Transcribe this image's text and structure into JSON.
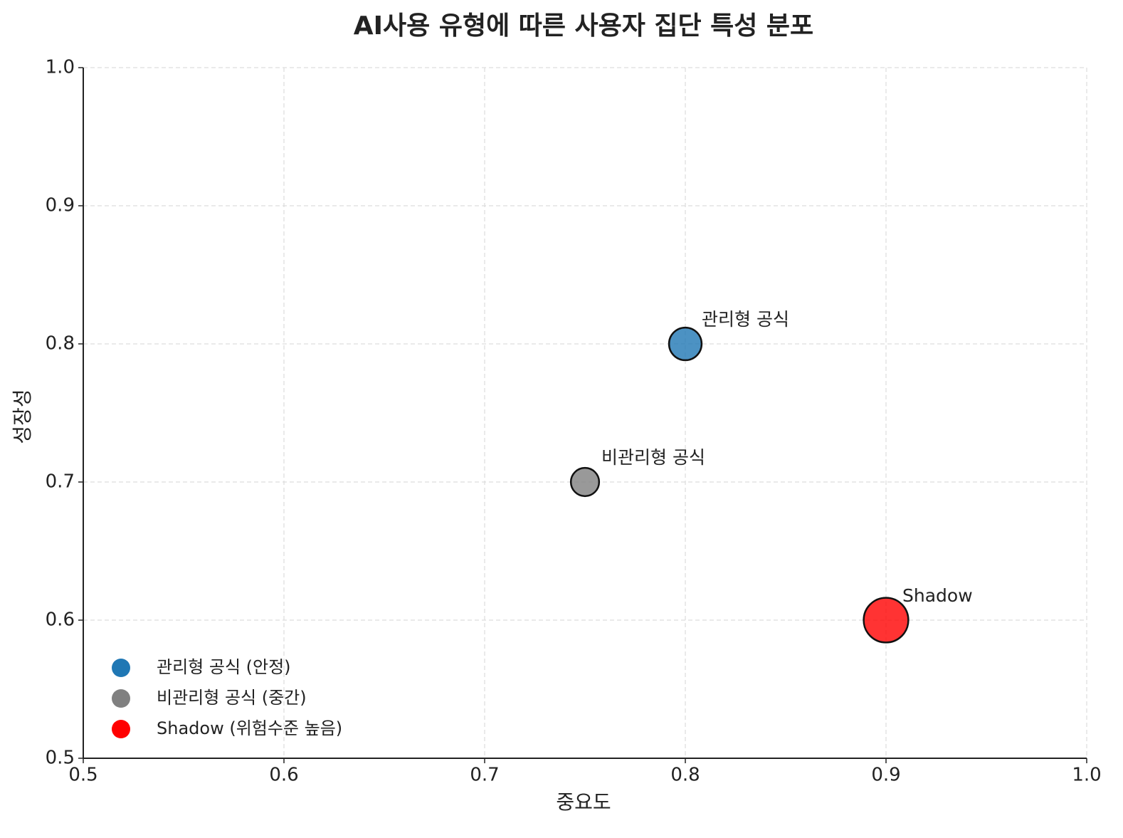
{
  "chart_data": {
    "type": "scatter",
    "title": "AI사용 유형에 따른 사용자 집단 특성 분포",
    "x_label": "중요도",
    "y_label": "성장성",
    "xlim": [
      0.5,
      1.0
    ],
    "ylim": [
      0.5,
      1.0
    ],
    "xticks": [
      0.5,
      0.6,
      0.7,
      0.8,
      0.9,
      {
        "value": 1.0,
        "label": "1.0"
      }
    ],
    "yticks": [
      0.5,
      0.6,
      0.7,
      0.8,
      0.9,
      {
        "value": 1.0,
        "label": "1.0"
      }
    ],
    "grid": true,
    "legend": "lower left",
    "series": [
      {
        "name": "관리형 공식 (안정)",
        "color": "#1f77b4",
        "label": "관리형 공식",
        "x": [
          0.8
        ],
        "values": [
          0.8
        ],
        "sizes": [
          800
        ]
      },
      {
        "name": "비관리형 공식 (중간)",
        "color": "#808080",
        "label": "비관리형 공식",
        "x": [
          0.75
        ],
        "values": [
          0.7
        ],
        "sizes": [
          600
        ]
      },
      {
        "name": "Shadow (위험수준 높음)",
        "color": "#ff0000",
        "label": "Shadow",
        "x": [
          0.9
        ],
        "values": [
          0.6
        ],
        "sizes": [
          1500
        ]
      }
    ]
  }
}
